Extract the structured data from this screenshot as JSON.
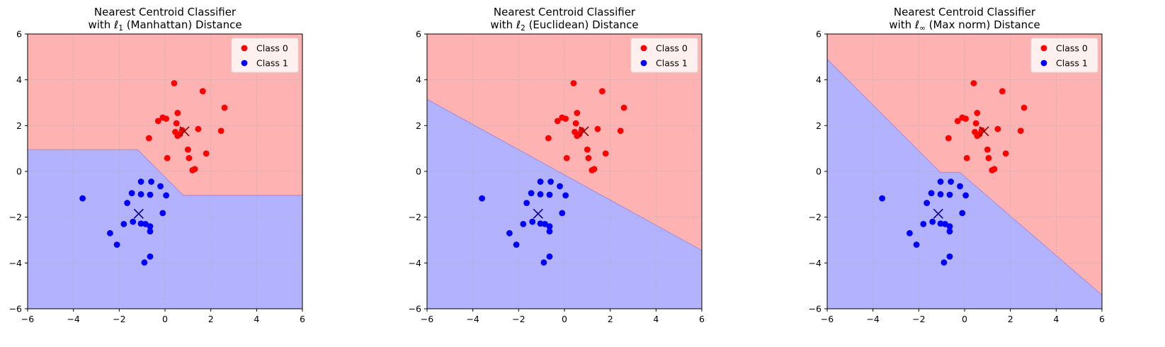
{
  "chart_data": [
    {
      "type": "scatter",
      "title_line1": "Nearest Centroid Classifier",
      "title_line2_prefix": "with ",
      "norm_symbol": "ℓ",
      "norm_sub": "1",
      "title_line2_suffix": " (Manhattan) Distance",
      "xlim": [
        -6,
        6
      ],
      "ylim": [
        -6,
        6
      ],
      "xticks": [
        -6,
        -4,
        -2,
        0,
        2,
        4,
        6
      ],
      "yticks": [
        -6,
        -4,
        -2,
        0,
        2,
        4,
        6
      ],
      "grid": true,
      "legend_position": "top-right",
      "boundary": [
        [
          -6,
          0.95
        ],
        [
          -1.2,
          0.95
        ],
        [
          0.8,
          -1.05
        ],
        [
          6,
          -1.05
        ]
      ],
      "class0_region": "above",
      "centroid_class0": [
        0.85,
        1.75
      ],
      "centroid_class1": [
        -1.15,
        -1.85
      ]
    },
    {
      "type": "scatter",
      "title_line1": "Nearest Centroid Classifier",
      "title_line2_prefix": "with ",
      "norm_symbol": "ℓ",
      "norm_sub": "2",
      "title_line2_suffix": " (Euclidean) Distance",
      "xlim": [
        -6,
        6
      ],
      "ylim": [
        -6,
        6
      ],
      "xticks": [
        -6,
        -4,
        -2,
        0,
        2,
        4,
        6
      ],
      "yticks": [
        -6,
        -4,
        -2,
        0,
        2,
        4,
        6
      ],
      "grid": true,
      "legend_position": "top-right",
      "boundary": [
        [
          -6,
          3.15
        ],
        [
          6,
          -3.45
        ]
      ],
      "class0_region": "above",
      "centroid_class0": [
        0.85,
        1.75
      ],
      "centroid_class1": [
        -1.15,
        -1.85
      ]
    },
    {
      "type": "scatter",
      "title_line1": "Nearest Centroid Classifier",
      "title_line2_prefix": "with ",
      "norm_symbol": "ℓ",
      "norm_sub": "∞",
      "title_line2_suffix": " (Max norm) Distance",
      "xlim": [
        -6,
        6
      ],
      "ylim": [
        -6,
        6
      ],
      "xticks": [
        -6,
        -4,
        -2,
        0,
        2,
        4,
        6
      ],
      "yticks": [
        -6,
        -4,
        -2,
        0,
        2,
        4,
        6
      ],
      "grid": true,
      "legend_position": "top-right",
      "boundary": [
        [
          -6,
          4.9
        ],
        [
          -1.05,
          -0.05
        ],
        [
          -0.2,
          -0.05
        ],
        [
          6,
          -5.4
        ]
      ],
      "class0_region": "above",
      "centroid_class0": [
        0.85,
        1.75
      ],
      "centroid_class1": [
        -1.15,
        -1.85
      ]
    }
  ],
  "series": [
    {
      "name": "Class 0",
      "color": "#ff0000",
      "points": [
        [
          0.4,
          3.85
        ],
        [
          1.65,
          3.5
        ],
        [
          2.6,
          2.78
        ],
        [
          0.55,
          2.55
        ],
        [
          -0.1,
          2.35
        ],
        [
          0.05,
          2.3
        ],
        [
          -0.3,
          2.2
        ],
        [
          0.5,
          2.1
        ],
        [
          1.45,
          1.85
        ],
        [
          0.45,
          1.72
        ],
        [
          2.45,
          1.77
        ],
        [
          0.65,
          1.62
        ],
        [
          0.75,
          1.8
        ],
        [
          0.55,
          1.55
        ],
        [
          -0.7,
          1.45
        ],
        [
          1.0,
          0.95
        ],
        [
          1.8,
          0.78
        ],
        [
          0.1,
          0.58
        ],
        [
          1.05,
          0.58
        ],
        [
          1.3,
          0.1
        ],
        [
          1.2,
          0.05
        ]
      ]
    },
    {
      "name": "Class 1",
      "color": "#0000ff",
      "points": [
        [
          -1.05,
          -0.45
        ],
        [
          -0.6,
          -0.45
        ],
        [
          -0.2,
          -0.65
        ],
        [
          -1.45,
          -0.95
        ],
        [
          -1.05,
          -1.0
        ],
        [
          -0.65,
          -1.02
        ],
        [
          0.05,
          -1.05
        ],
        [
          -3.6,
          -1.18
        ],
        [
          -1.65,
          -1.38
        ],
        [
          -0.1,
          -1.82
        ],
        [
          -1.4,
          -2.2
        ],
        [
          -1.05,
          -2.28
        ],
        [
          -0.85,
          -2.3
        ],
        [
          -1.8,
          -2.3
        ],
        [
          -0.65,
          -2.4
        ],
        [
          -0.65,
          -2.62
        ],
        [
          -2.4,
          -2.7
        ],
        [
          -2.1,
          -3.2
        ],
        [
          -0.65,
          -3.72
        ],
        [
          -0.9,
          -3.98
        ]
      ]
    }
  ]
}
